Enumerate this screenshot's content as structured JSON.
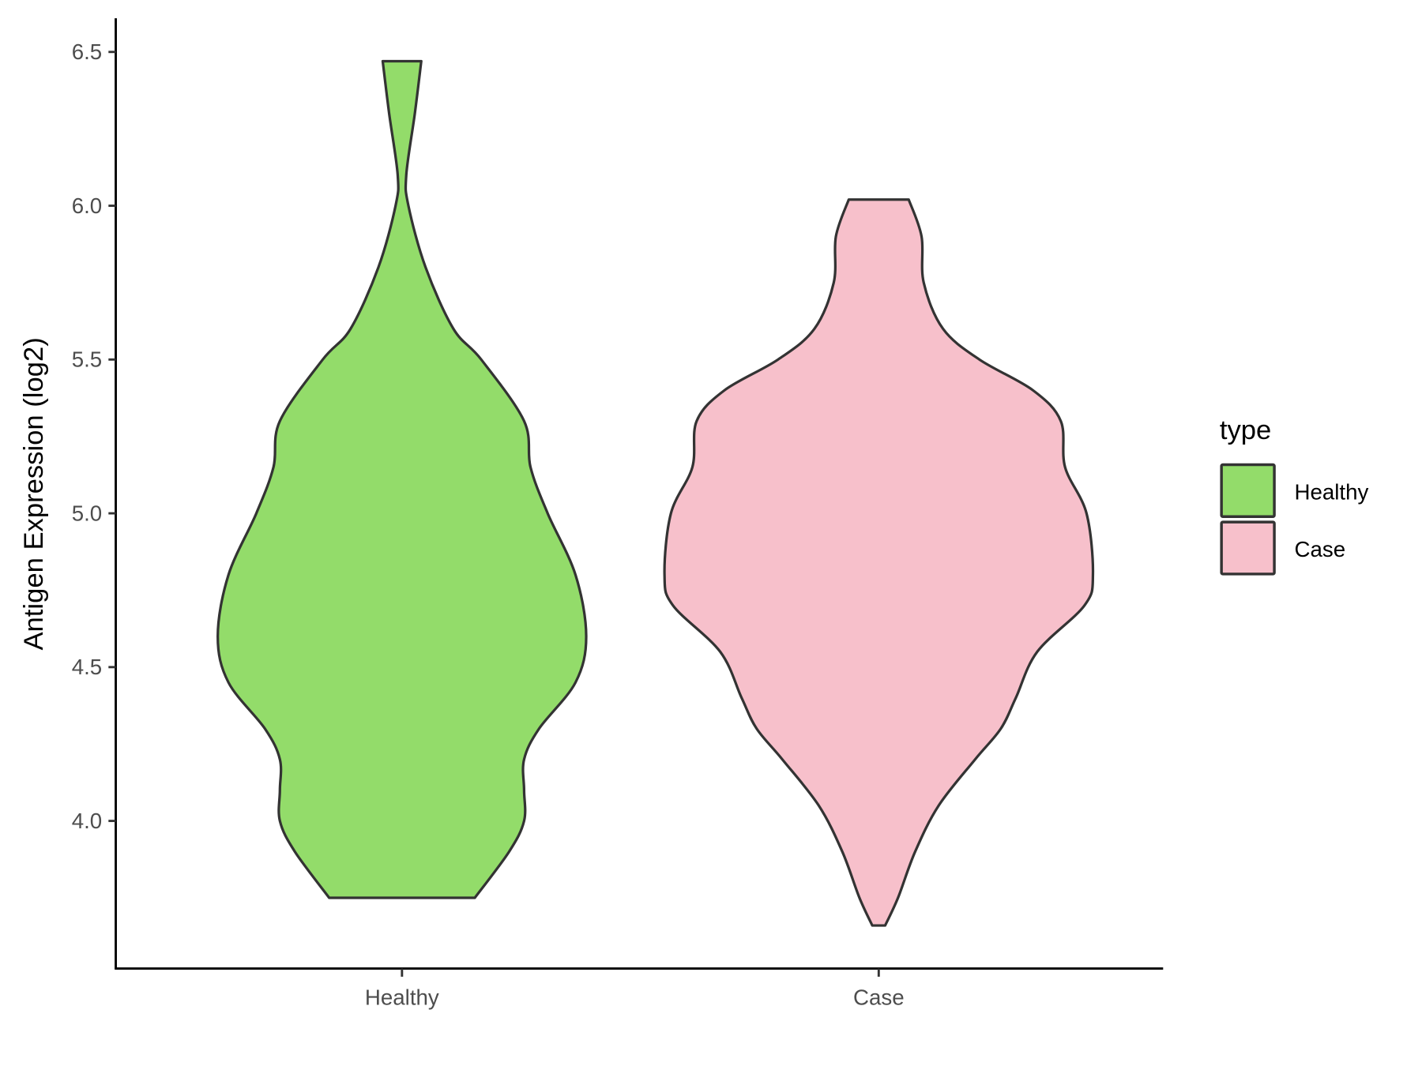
{
  "chart_data": {
    "type": "violin",
    "title": "",
    "xlabel": "",
    "ylabel": "Antigen Expression (log2)",
    "categories": [
      "Healthy",
      "Case"
    ],
    "ylim": [
      3.52,
      6.61
    ],
    "yticks": [
      4.0,
      4.5,
      5.0,
      5.5,
      6.0,
      6.5
    ],
    "ytick_labels": [
      "4.0",
      "4.5",
      "5.0",
      "5.5",
      "6.0",
      "6.5"
    ],
    "grid": false,
    "legend": {
      "title": "type",
      "position": "right",
      "entries": [
        "Healthy",
        "Case"
      ]
    },
    "series": [
      {
        "name": "Healthy",
        "color": "#93DC6A",
        "y": [
          3.75,
          3.9,
          4.0,
          4.1,
          4.2,
          4.3,
          4.45,
          4.6,
          4.8,
          5.0,
          5.15,
          5.3,
          5.5,
          5.6,
          5.8,
          6.0,
          6.1,
          6.3,
          6.47
        ],
        "density": [
          0.34,
          0.5,
          0.57,
          0.57,
          0.57,
          0.64,
          0.81,
          0.86,
          0.81,
          0.68,
          0.6,
          0.57,
          0.37,
          0.24,
          0.11,
          0.03,
          0.02,
          0.06,
          0.09
        ]
      },
      {
        "name": "Case",
        "color": "#F7C0CB",
        "y": [
          3.66,
          3.75,
          3.9,
          4.05,
          4.2,
          4.3,
          4.4,
          4.55,
          4.7,
          4.8,
          5.0,
          5.15,
          5.3,
          5.4,
          5.5,
          5.6,
          5.75,
          5.9,
          6.02
        ],
        "density": [
          0.03,
          0.09,
          0.17,
          0.28,
          0.45,
          0.57,
          0.64,
          0.74,
          0.96,
          1.0,
          0.97,
          0.87,
          0.85,
          0.72,
          0.47,
          0.3,
          0.21,
          0.2,
          0.14
        ]
      }
    ]
  }
}
